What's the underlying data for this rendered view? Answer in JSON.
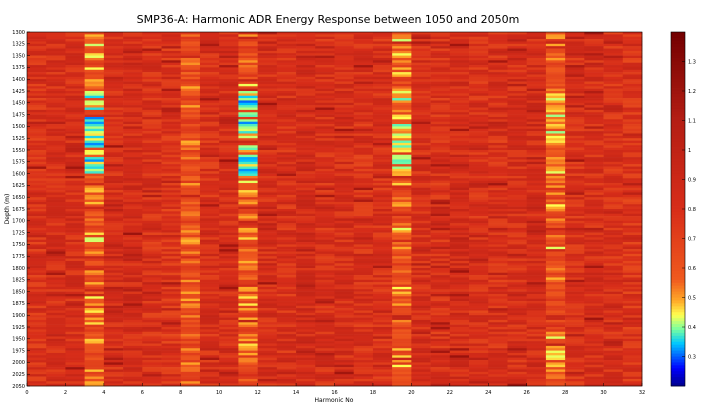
{
  "chart_data": {
    "type": "heatmap",
    "title": "SMP36-A: Harmonic ADR Energy Response between 1050 and 2050m",
    "xlabel": "Harmonic No",
    "ylabel": "Depth (m)",
    "xlim": [
      0,
      32
    ],
    "ylim": [
      1300,
      2050
    ],
    "y_reversed": true,
    "x_ticks": [
      "0",
      "2",
      "4",
      "6",
      "8",
      "10",
      "12",
      "14",
      "16",
      "18",
      "20",
      "22",
      "24",
      "26",
      "28",
      "30",
      "32"
    ],
    "y_ticks": [
      "1300",
      "1325",
      "1350",
      "1375",
      "1400",
      "1425",
      "1450",
      "1475",
      "1500",
      "1525",
      "1550",
      "1575",
      "1600",
      "1625",
      "1650",
      "1675",
      "1700",
      "1725",
      "1750",
      "1775",
      "1800",
      "1825",
      "1850",
      "1875",
      "1900",
      "1925",
      "1950",
      "1975",
      "2000",
      "2025",
      "2050"
    ],
    "colorbar": {
      "min": 0.2,
      "max": 1.4,
      "ticks": [
        "0.3",
        "0.4",
        "0.5",
        "0.6",
        "0.7",
        "0.8",
        "0.9",
        "1",
        "1.1",
        "1.2",
        "1.3"
      ],
      "colormap": "jet-like, red dominant"
    },
    "harmonics": [
      1,
      2,
      3,
      4,
      5,
      6,
      7,
      8,
      9,
      10,
      11,
      12,
      13,
      14,
      15,
      16,
      17,
      18,
      19,
      20,
      21,
      22,
      23,
      24,
      25,
      26,
      27,
      28,
      29,
      30,
      31,
      32
    ],
    "column_baseline": [
      0.8,
      0.8,
      0.82,
      0.6,
      0.82,
      0.84,
      0.8,
      0.78,
      0.62,
      0.8,
      0.84,
      0.62,
      0.82,
      0.8,
      0.86,
      0.8,
      0.82,
      0.8,
      0.8,
      0.62,
      0.82,
      0.8,
      0.84,
      0.8,
      0.8,
      0.82,
      0.84,
      0.62,
      0.8,
      0.82,
      0.8,
      0.78
    ],
    "high_response_bands": [
      {
        "harmonic": 4,
        "depth_range": [
          1425,
          1600
        ],
        "min_value": 0.3
      },
      {
        "harmonic": 12,
        "depth_range": [
          1425,
          1600
        ],
        "min_value": 0.3
      },
      {
        "harmonic": 20,
        "depth_range": [
          1425,
          1600
        ],
        "min_value": 0.38
      },
      {
        "harmonic": 28,
        "depth_range": [
          1425,
          1600
        ],
        "min_value": 0.4
      }
    ]
  }
}
